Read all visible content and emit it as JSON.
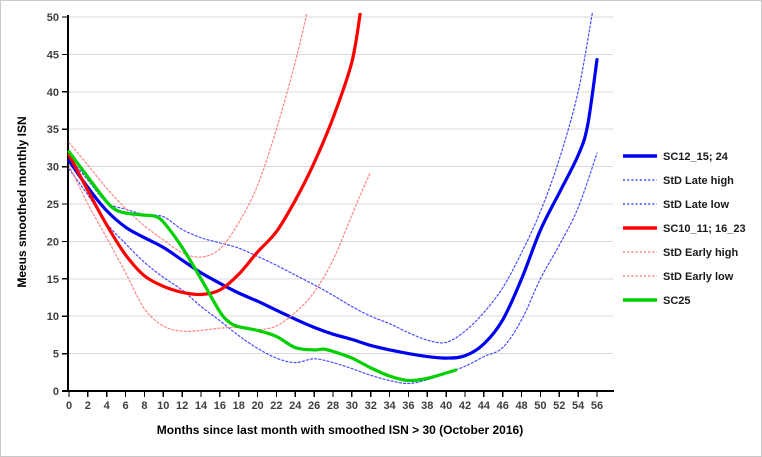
{
  "figure": {
    "background": "#ffffff",
    "border_color": "#c9c9c9",
    "grid_color": "#d9d9d9",
    "axis_color": "#000000",
    "tick_label_color": "#3f3f3f"
  },
  "chart_data": {
    "type": "line",
    "title": "",
    "xlabel": "Months since last month with smoothed ISN > 30 (October 2016)",
    "ylabel": "Meeus smoothed monthly ISN",
    "xlim": [
      0,
      56
    ],
    "ylim": [
      0,
      50
    ],
    "x_ticks": [
      0,
      2,
      4,
      6,
      8,
      10,
      12,
      14,
      16,
      18,
      20,
      22,
      24,
      26,
      28,
      30,
      32,
      34,
      36,
      38,
      40,
      42,
      44,
      46,
      48,
      50,
      52,
      54,
      56
    ],
    "y_ticks": [
      0,
      5,
      10,
      15,
      20,
      25,
      30,
      35,
      40,
      45,
      50
    ],
    "grid": "horizontal",
    "legend_position": "right",
    "series": [
      {
        "name": "SC12_15; 24",
        "color": "#0000f0",
        "style": "solid",
        "width": 3.2,
        "points": [
          [
            0,
            30.8
          ],
          [
            2,
            27.2
          ],
          [
            4,
            24.1
          ],
          [
            6,
            21.9
          ],
          [
            8,
            20.5
          ],
          [
            10,
            19.2
          ],
          [
            12,
            17.5
          ],
          [
            14,
            15.8
          ],
          [
            16,
            14.4
          ],
          [
            18,
            13.1
          ],
          [
            20,
            12.0
          ],
          [
            22,
            10.8
          ],
          [
            24,
            9.6
          ],
          [
            26,
            8.5
          ],
          [
            28,
            7.6
          ],
          [
            30,
            6.9
          ],
          [
            32,
            6.1
          ],
          [
            34,
            5.5
          ],
          [
            36,
            5.0
          ],
          [
            38,
            4.6
          ],
          [
            40,
            4.4
          ],
          [
            42,
            4.7
          ],
          [
            44,
            6.3
          ],
          [
            46,
            9.5
          ],
          [
            48,
            15.0
          ],
          [
            50,
            21.5
          ],
          [
            52,
            26.5
          ],
          [
            54,
            31.5
          ],
          [
            55,
            35.5
          ],
          [
            56,
            44.3
          ]
        ]
      },
      {
        "name": "StD Late high",
        "color": "#4a4aff",
        "style": "dotted",
        "width": 1.2,
        "points": [
          [
            0,
            31.3
          ],
          [
            2,
            28.2
          ],
          [
            4,
            25.2
          ],
          [
            6,
            24.3
          ],
          [
            8,
            23.6
          ],
          [
            10,
            23.3
          ],
          [
            12,
            21.6
          ],
          [
            14,
            20.5
          ],
          [
            16,
            19.8
          ],
          [
            18,
            19.1
          ],
          [
            20,
            18.0
          ],
          [
            22,
            16.8
          ],
          [
            24,
            15.5
          ],
          [
            26,
            14.2
          ],
          [
            28,
            12.8
          ],
          [
            30,
            11.3
          ],
          [
            32,
            10.0
          ],
          [
            34,
            9.0
          ],
          [
            36,
            7.8
          ],
          [
            38,
            6.8
          ],
          [
            40,
            6.5
          ],
          [
            42,
            8.0
          ],
          [
            44,
            10.5
          ],
          [
            46,
            13.8
          ],
          [
            48,
            18.5
          ],
          [
            50,
            24.0
          ],
          [
            52,
            31.0
          ],
          [
            54,
            40.0
          ],
          [
            55.5,
            50.5
          ]
        ]
      },
      {
        "name": "StD Late low",
        "color": "#4a4aff",
        "style": "dotted",
        "width": 1.2,
        "points": [
          [
            0,
            29.7
          ],
          [
            2,
            26.2
          ],
          [
            4,
            22.4
          ],
          [
            6,
            19.7
          ],
          [
            8,
            17.2
          ],
          [
            10,
            15.2
          ],
          [
            12,
            13.5
          ],
          [
            14,
            11.3
          ],
          [
            16,
            9.4
          ],
          [
            18,
            7.4
          ],
          [
            20,
            5.7
          ],
          [
            22,
            4.4
          ],
          [
            24,
            3.8
          ],
          [
            26,
            4.3
          ],
          [
            28,
            3.8
          ],
          [
            30,
            3.0
          ],
          [
            32,
            2.1
          ],
          [
            34,
            1.4
          ],
          [
            36,
            1.0
          ],
          [
            38,
            1.5
          ],
          [
            40,
            2.4
          ],
          [
            42,
            3.3
          ],
          [
            44,
            4.6
          ],
          [
            46,
            5.8
          ],
          [
            48,
            9.5
          ],
          [
            50,
            15.0
          ],
          [
            52,
            19.5
          ],
          [
            54,
            24.5
          ],
          [
            56,
            31.8
          ]
        ]
      },
      {
        "name": "SC10_11; 16_23",
        "color": "#fe0000",
        "style": "solid",
        "width": 3.2,
        "points": [
          [
            0,
            31.6
          ],
          [
            2,
            26.8
          ],
          [
            4,
            22.2
          ],
          [
            6,
            18.2
          ],
          [
            8,
            15.4
          ],
          [
            10,
            14.0
          ],
          [
            12,
            13.2
          ],
          [
            14,
            12.9
          ],
          [
            16,
            13.5
          ],
          [
            18,
            15.6
          ],
          [
            20,
            18.6
          ],
          [
            22,
            21.3
          ],
          [
            24,
            25.5
          ],
          [
            26,
            30.5
          ],
          [
            28,
            36.5
          ],
          [
            30,
            44.0
          ],
          [
            31,
            51.5
          ]
        ]
      },
      {
        "name": "StD Early high",
        "color": "#ff8585",
        "style": "dotted",
        "width": 1.2,
        "points": [
          [
            0,
            33.2
          ],
          [
            2,
            30.2
          ],
          [
            4,
            27.1
          ],
          [
            6,
            24.4
          ],
          [
            8,
            22.1
          ],
          [
            10,
            20.2
          ],
          [
            12,
            18.5
          ],
          [
            14,
            17.9
          ],
          [
            16,
            19.0
          ],
          [
            18,
            22.5
          ],
          [
            20,
            27.5
          ],
          [
            22,
            35.0
          ],
          [
            24,
            44.0
          ],
          [
            25.5,
            52.0
          ]
        ]
      },
      {
        "name": "StD Early low",
        "color": "#ff8585",
        "style": "dotted",
        "width": 1.2,
        "points": [
          [
            0,
            30.2
          ],
          [
            2,
            25.0
          ],
          [
            4,
            20.5
          ],
          [
            6,
            15.8
          ],
          [
            8,
            11.0
          ],
          [
            10,
            8.7
          ],
          [
            12,
            8.0
          ],
          [
            14,
            8.1
          ],
          [
            16,
            8.4
          ],
          [
            18,
            8.5
          ],
          [
            20,
            8.2
          ],
          [
            22,
            8.7
          ],
          [
            24,
            10.5
          ],
          [
            26,
            13.2
          ],
          [
            28,
            17.5
          ],
          [
            30,
            23.5
          ],
          [
            31,
            26.5
          ],
          [
            32,
            29.3
          ]
        ]
      },
      {
        "name": "SC25",
        "color": "#00cf00",
        "style": "solid",
        "width": 3.2,
        "points": [
          [
            0,
            32.0
          ],
          [
            2,
            28.6
          ],
          [
            4,
            25.3
          ],
          [
            5,
            24.2
          ],
          [
            6,
            23.8
          ],
          [
            8,
            23.5
          ],
          [
            9,
            23.4
          ],
          [
            10,
            22.6
          ],
          [
            12,
            19.2
          ],
          [
            14,
            15.0
          ],
          [
            16,
            10.6
          ],
          [
            17,
            9.2
          ],
          [
            18,
            8.6
          ],
          [
            20,
            8.1
          ],
          [
            22,
            7.3
          ],
          [
            24,
            5.8
          ],
          [
            26,
            5.5
          ],
          [
            27,
            5.6
          ],
          [
            28,
            5.3
          ],
          [
            30,
            4.4
          ],
          [
            32,
            3.1
          ],
          [
            34,
            2.0
          ],
          [
            36,
            1.4
          ],
          [
            38,
            1.7
          ],
          [
            40,
            2.4
          ],
          [
            41,
            2.8
          ]
        ]
      }
    ]
  }
}
